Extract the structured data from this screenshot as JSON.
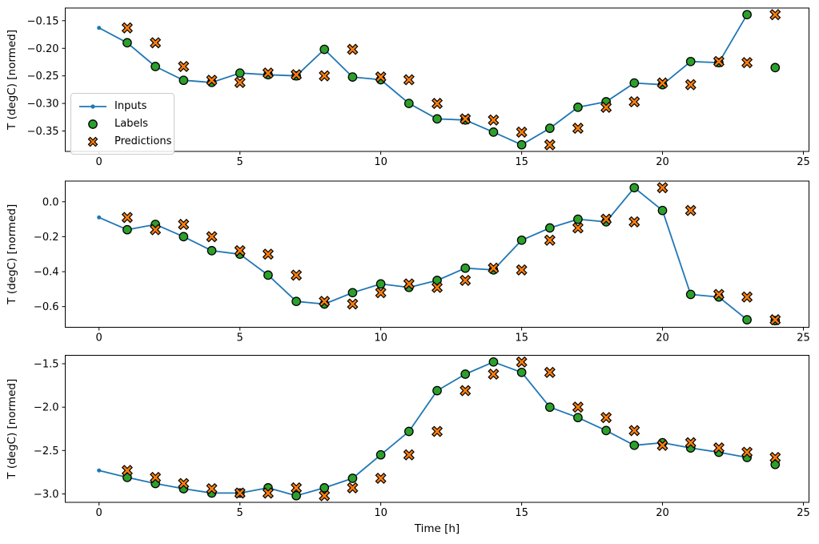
{
  "figure": {
    "background": "#ffffff",
    "xlabel": "Time [h]",
    "ylabel": "T (degC) [normed]",
    "colors": {
      "inputs": "#1f77b4",
      "labels": "#2ca02c",
      "predictions": "#ff7f0e",
      "marker_edge": "#000000",
      "axis": "#000000",
      "legend_border": "#cccccc"
    },
    "legend": {
      "items": [
        {
          "label": "Inputs",
          "marker": "line-dot",
          "color": "#1f77b4"
        },
        {
          "label": "Labels",
          "marker": "circle",
          "color": "#2ca02c"
        },
        {
          "label": "Predictions",
          "marker": "X",
          "color": "#ff7f0e"
        }
      ]
    }
  },
  "chart_data": [
    {
      "name": "subplot-1",
      "type": "line",
      "title": "",
      "xlabel": "",
      "ylabel": "T (degC) [normed]",
      "xlim": [
        -1.2,
        25.2
      ],
      "ylim": [
        -0.387,
        -0.127
      ],
      "xticks": [
        0,
        5,
        10,
        15,
        20,
        25
      ],
      "xtick_labels": [
        "0",
        "5",
        "10",
        "15",
        "20",
        "25"
      ],
      "yticks": [
        -0.15,
        -0.2,
        -0.25,
        -0.3,
        -0.35
      ],
      "ytick_labels": [
        "−0.15",
        "−0.20",
        "−0.25",
        "−0.30",
        "−0.35"
      ],
      "grid": false,
      "show_legend": true,
      "series": [
        {
          "name": "Inputs",
          "kind": "line",
          "marker": "dot",
          "color": "#1f77b4",
          "x": [
            0,
            1,
            2,
            3,
            4,
            5,
            6,
            7,
            8,
            9,
            10,
            11,
            12,
            13,
            14,
            15,
            16,
            17,
            18,
            19,
            20,
            21,
            22,
            23
          ],
          "y": [
            -0.163,
            -0.19,
            -0.233,
            -0.258,
            -0.262,
            -0.245,
            -0.248,
            -0.25,
            -0.202,
            -0.252,
            -0.257,
            -0.3,
            -0.328,
            -0.33,
            -0.352,
            -0.375,
            -0.345,
            -0.307,
            -0.297,
            -0.263,
            -0.266,
            -0.224,
            -0.226,
            -0.139
          ]
        },
        {
          "name": "Labels",
          "kind": "scatter",
          "marker": "circle",
          "color": "#2ca02c",
          "edge": "#000000",
          "x": [
            1,
            2,
            3,
            4,
            5,
            6,
            7,
            8,
            9,
            10,
            11,
            12,
            13,
            14,
            15,
            16,
            17,
            18,
            19,
            20,
            21,
            22,
            23,
            24
          ],
          "y": [
            -0.19,
            -0.233,
            -0.258,
            -0.262,
            -0.245,
            -0.248,
            -0.25,
            -0.202,
            -0.252,
            -0.257,
            -0.3,
            -0.328,
            -0.33,
            -0.352,
            -0.375,
            -0.345,
            -0.307,
            -0.297,
            -0.263,
            -0.266,
            -0.224,
            -0.226,
            -0.139,
            -0.235
          ]
        },
        {
          "name": "Predictions",
          "kind": "scatter",
          "marker": "X",
          "color": "#ff7f0e",
          "edge": "#000000",
          "x": [
            1,
            2,
            3,
            4,
            5,
            6,
            7,
            8,
            9,
            10,
            11,
            12,
            13,
            14,
            15,
            16,
            17,
            18,
            19,
            20,
            21,
            22,
            23,
            24
          ],
          "y": [
            -0.163,
            -0.19,
            -0.233,
            -0.258,
            -0.262,
            -0.245,
            -0.248,
            -0.25,
            -0.202,
            -0.252,
            -0.257,
            -0.3,
            -0.328,
            -0.33,
            -0.352,
            -0.375,
            -0.345,
            -0.307,
            -0.297,
            -0.263,
            -0.266,
            -0.224,
            -0.226,
            -0.139
          ]
        }
      ]
    },
    {
      "name": "subplot-2",
      "type": "line",
      "title": "",
      "xlabel": "",
      "ylabel": "T (degC) [normed]",
      "xlim": [
        -1.2,
        25.2
      ],
      "ylim": [
        -0.718,
        0.118
      ],
      "xticks": [
        0,
        5,
        10,
        15,
        20,
        25
      ],
      "xtick_labels": [
        "0",
        "5",
        "10",
        "15",
        "20",
        "25"
      ],
      "yticks": [
        0.0,
        -0.2,
        -0.4,
        -0.6
      ],
      "ytick_labels": [
        "0.0",
        "−0.2",
        "−0.4",
        "−0.6"
      ],
      "grid": false,
      "show_legend": false,
      "series": [
        {
          "name": "Inputs",
          "kind": "line",
          "marker": "dot",
          "color": "#1f77b4",
          "x": [
            0,
            1,
            2,
            3,
            4,
            5,
            6,
            7,
            8,
            9,
            10,
            11,
            12,
            13,
            14,
            15,
            16,
            17,
            18,
            19,
            20,
            21,
            22,
            23
          ],
          "y": [
            -0.09,
            -0.16,
            -0.13,
            -0.2,
            -0.28,
            -0.3,
            -0.42,
            -0.57,
            -0.585,
            -0.52,
            -0.47,
            -0.49,
            -0.45,
            -0.38,
            -0.39,
            -0.22,
            -0.15,
            -0.1,
            -0.115,
            0.08,
            -0.05,
            -0.53,
            -0.545,
            -0.675
          ]
        },
        {
          "name": "Labels",
          "kind": "scatter",
          "marker": "circle",
          "color": "#2ca02c",
          "edge": "#000000",
          "x": [
            1,
            2,
            3,
            4,
            5,
            6,
            7,
            8,
            9,
            10,
            11,
            12,
            13,
            14,
            15,
            16,
            17,
            18,
            19,
            20,
            21,
            22,
            23,
            24
          ],
          "y": [
            -0.16,
            -0.13,
            -0.2,
            -0.28,
            -0.3,
            -0.42,
            -0.57,
            -0.585,
            -0.52,
            -0.47,
            -0.49,
            -0.45,
            -0.38,
            -0.39,
            -0.22,
            -0.15,
            -0.1,
            -0.115,
            0.08,
            -0.05,
            -0.53,
            -0.545,
            -0.675,
            -0.68
          ]
        },
        {
          "name": "Predictions",
          "kind": "scatter",
          "marker": "X",
          "color": "#ff7f0e",
          "edge": "#000000",
          "x": [
            1,
            2,
            3,
            4,
            5,
            6,
            7,
            8,
            9,
            10,
            11,
            12,
            13,
            14,
            15,
            16,
            17,
            18,
            19,
            20,
            21,
            22,
            23,
            24
          ],
          "y": [
            -0.09,
            -0.16,
            -0.13,
            -0.2,
            -0.28,
            -0.3,
            -0.42,
            -0.57,
            -0.585,
            -0.52,
            -0.47,
            -0.49,
            -0.45,
            -0.38,
            -0.39,
            -0.22,
            -0.15,
            -0.1,
            -0.115,
            0.08,
            -0.05,
            -0.53,
            -0.545,
            -0.675
          ]
        }
      ]
    },
    {
      "name": "subplot-3",
      "type": "line",
      "title": "",
      "xlabel": "Time [h]",
      "ylabel": "T (degC) [normed]",
      "xlim": [
        -1.2,
        25.2
      ],
      "ylim": [
        -3.097,
        -1.403
      ],
      "xticks": [
        0,
        5,
        10,
        15,
        20,
        25
      ],
      "xtick_labels": [
        "0",
        "5",
        "10",
        "15",
        "20",
        "25"
      ],
      "yticks": [
        -1.5,
        -2.0,
        -2.5,
        -3.0
      ],
      "ytick_labels": [
        "−1.5",
        "−2.0",
        "−2.5",
        "−3.0"
      ],
      "grid": false,
      "show_legend": false,
      "series": [
        {
          "name": "Inputs",
          "kind": "line",
          "marker": "dot",
          "color": "#1f77b4",
          "x": [
            0,
            1,
            2,
            3,
            4,
            5,
            6,
            7,
            8,
            9,
            10,
            11,
            12,
            13,
            14,
            15,
            16,
            17,
            18,
            19,
            20,
            21,
            22,
            23
          ],
          "y": [
            -2.73,
            -2.81,
            -2.88,
            -2.94,
            -2.99,
            -2.99,
            -2.93,
            -3.02,
            -2.93,
            -2.82,
            -2.55,
            -2.28,
            -1.81,
            -1.62,
            -1.48,
            -1.6,
            -2.0,
            -2.12,
            -2.27,
            -2.44,
            -2.41,
            -2.47,
            -2.52,
            -2.58
          ]
        },
        {
          "name": "Labels",
          "kind": "scatter",
          "marker": "circle",
          "color": "#2ca02c",
          "edge": "#000000",
          "x": [
            1,
            2,
            3,
            4,
            5,
            6,
            7,
            8,
            9,
            10,
            11,
            12,
            13,
            14,
            15,
            16,
            17,
            18,
            19,
            20,
            21,
            22,
            23,
            24
          ],
          "y": [
            -2.81,
            -2.88,
            -2.94,
            -2.99,
            -2.99,
            -2.93,
            -3.02,
            -2.93,
            -2.82,
            -2.55,
            -2.28,
            -1.81,
            -1.62,
            -1.48,
            -1.6,
            -2.0,
            -2.12,
            -2.27,
            -2.44,
            -2.41,
            -2.47,
            -2.52,
            -2.58,
            -2.66
          ]
        },
        {
          "name": "Predictions",
          "kind": "scatter",
          "marker": "X",
          "color": "#ff7f0e",
          "edge": "#000000",
          "x": [
            1,
            2,
            3,
            4,
            5,
            6,
            7,
            8,
            9,
            10,
            11,
            12,
            13,
            14,
            15,
            16,
            17,
            18,
            19,
            20,
            21,
            22,
            23,
            24
          ],
          "y": [
            -2.73,
            -2.81,
            -2.88,
            -2.94,
            -2.99,
            -2.99,
            -2.93,
            -3.02,
            -2.93,
            -2.82,
            -2.55,
            -2.28,
            -1.81,
            -1.62,
            -1.48,
            -1.6,
            -2.0,
            -2.12,
            -2.27,
            -2.44,
            -2.41,
            -2.47,
            -2.52,
            -2.58
          ]
        }
      ]
    }
  ]
}
